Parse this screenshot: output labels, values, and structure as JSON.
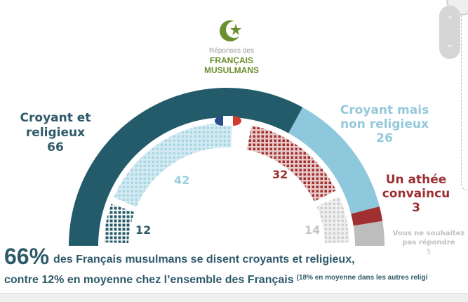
{
  "header": {
    "logo_icon": "crescent-star-icon",
    "caption_line1": "Réponses des",
    "caption_line2": "FRANÇAIS",
    "caption_line3": "MUSULMANS",
    "accent_color": "#6b8e2e"
  },
  "chart_data": {
    "type": "pie",
    "subtype": "half-donut",
    "outer_ring": {
      "name": "Réponses des Français musulmans",
      "categories": [
        "Croyant et religieux",
        "Croyant mais non religieux",
        "Un athée convaincu",
        "Vous ne souhaitez pas répondre"
      ],
      "values": [
        66,
        26,
        3,
        5
      ],
      "colors": [
        "#245b6b",
        "#8ec8dc",
        "#a0302f",
        "#bdbdbd"
      ]
    },
    "inner_ring": {
      "name": "Ensemble des Français",
      "categories": [
        "Croyant et religieux",
        "Croyant mais non religieux",
        "Un athée convaincu",
        "Vous ne souhaitez pas répondre"
      ],
      "values": [
        12,
        42,
        32,
        14
      ],
      "colors": [
        "#245b6b",
        "#8ec8dc",
        "#a0302f",
        "#bdbdbd"
      ],
      "marker_icon": "french-flag-icon"
    }
  },
  "labels": {
    "dark": {
      "line1": "Croyant et",
      "line2": "religieux",
      "value": "66"
    },
    "light": {
      "line1": "Croyant mais",
      "line2": "non religieux",
      "value": "26"
    },
    "red": {
      "line1": "Un athée",
      "line2": "convaincu",
      "value": "3"
    },
    "gray": {
      "line1": "Vous ne souhaitez",
      "line2": "pas répondre",
      "value": "5"
    }
  },
  "inner_values": {
    "dark": "12",
    "light": "42",
    "red": "32",
    "gray": "14"
  },
  "headline": {
    "big": "66%",
    "line1": "des Français musulmans se disent croyants et religieux,",
    "line2": "contre 12% en moyenne chez l’ensemble des Français",
    "note": "(18% en moyenne dans les autres religi"
  },
  "scroll": {
    "up_icon": "chevron-up-icon",
    "down_icon": "chevron-down-icon"
  }
}
